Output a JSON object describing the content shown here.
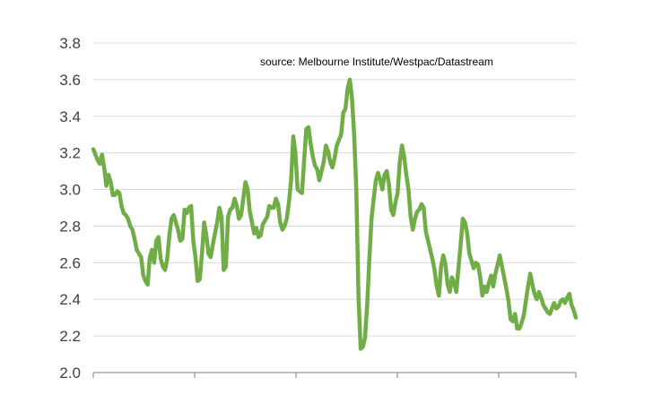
{
  "chart_data": {
    "type": "line",
    "title": "",
    "xlabel": "",
    "ylabel": "",
    "annotation": "source:  Melbourne Institute/Westpac/Datastream",
    "ylim": [
      2.0,
      3.8
    ],
    "yticks": [
      "2.0",
      "2.2",
      "2.4",
      "2.6",
      "2.8",
      "3.0",
      "3.2",
      "3.4",
      "3.6",
      "3.8"
    ],
    "grid": "horizontal",
    "line_color": "#70ad47",
    "x_points": 250,
    "series": [
      {
        "values": [
          3.22,
          3.19,
          3.16,
          3.14,
          3.19,
          3.12,
          3.02,
          3.08,
          3.04,
          2.97,
          2.97,
          2.99,
          2.98,
          2.91,
          2.87,
          2.86,
          2.84,
          2.8,
          2.78,
          2.73,
          2.67,
          2.65,
          2.63,
          2.53,
          2.5,
          2.48,
          2.63,
          2.67,
          2.6,
          2.72,
          2.74,
          2.62,
          2.58,
          2.56,
          2.62,
          2.75,
          2.84,
          2.86,
          2.82,
          2.78,
          2.72,
          2.73,
          2.89,
          2.87,
          2.9,
          2.91,
          2.72,
          2.63,
          2.5,
          2.51,
          2.65,
          2.82,
          2.75,
          2.65,
          2.63,
          2.7,
          2.76,
          2.82,
          2.9,
          2.85,
          2.56,
          2.58,
          2.85,
          2.89,
          2.9,
          2.95,
          2.91,
          2.84,
          2.86,
          2.95,
          3.04,
          3.0,
          2.88,
          2.82,
          2.76,
          2.79,
          2.74,
          2.75,
          2.81,
          2.83,
          2.85,
          2.91,
          2.9,
          2.9,
          2.95,
          2.92,
          2.82,
          2.78,
          2.8,
          2.84,
          2.93,
          3.05,
          3.29,
          3.2,
          3.0,
          2.99,
          2.98,
          3.16,
          3.33,
          3.34,
          3.25,
          3.18,
          3.13,
          3.11,
          3.05,
          3.1,
          3.15,
          3.24,
          3.21,
          3.15,
          3.12,
          3.17,
          3.24,
          3.27,
          3.3,
          3.42,
          3.44,
          3.55,
          3.6,
          3.5,
          3.3,
          3.0,
          2.42,
          2.13,
          2.14,
          2.19,
          2.37,
          2.62,
          2.84,
          2.95,
          3.05,
          3.09,
          3.05,
          3.0,
          3.08,
          3.1,
          3.03,
          2.89,
          2.86,
          2.93,
          2.98,
          3.15,
          3.24,
          3.18,
          3.08,
          3.0,
          2.85,
          2.78,
          2.84,
          2.88,
          2.89,
          2.92,
          2.9,
          2.77,
          2.72,
          2.67,
          2.62,
          2.56,
          2.47,
          2.42,
          2.58,
          2.64,
          2.59,
          2.48,
          2.44,
          2.52,
          2.49,
          2.44,
          2.57,
          2.7,
          2.84,
          2.82,
          2.76,
          2.65,
          2.61,
          2.57,
          2.6,
          2.59,
          2.52,
          2.42,
          2.47,
          2.44,
          2.49,
          2.53,
          2.47,
          2.54,
          2.59,
          2.64,
          2.58,
          2.52,
          2.46,
          2.39,
          2.29,
          2.28,
          2.32,
          2.24,
          2.24,
          2.27,
          2.31,
          2.39,
          2.47,
          2.54,
          2.48,
          2.43,
          2.4,
          2.44,
          2.41,
          2.37,
          2.35,
          2.33,
          2.32,
          2.35,
          2.38,
          2.35,
          2.36,
          2.39,
          2.4,
          2.38,
          2.41,
          2.43,
          2.37,
          2.34,
          2.3
        ]
      }
    ]
  }
}
